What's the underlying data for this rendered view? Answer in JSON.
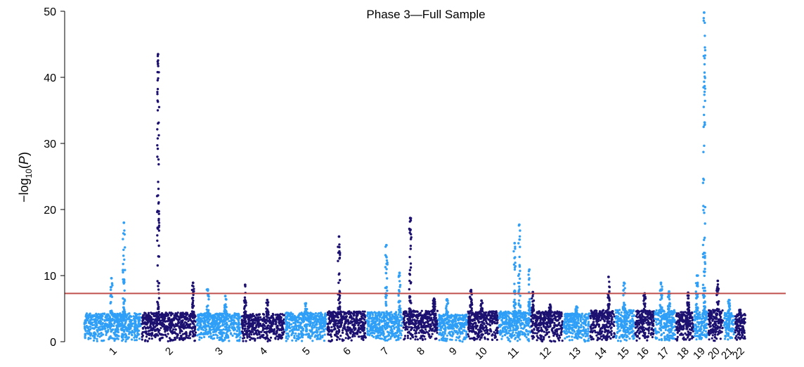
{
  "chart_data": {
    "type": "scatter",
    "subtype": "manhattan",
    "title": "Phase 3—Full Sample",
    "xlabel": "",
    "ylabel": {
      "prefix": "−log",
      "subscript": "10",
      "open": "(",
      "italic": "P",
      "close": ")"
    },
    "ylim": [
      0,
      50
    ],
    "yticks": [
      0,
      10,
      20,
      30,
      40,
      50
    ],
    "grid": false,
    "legend": "none",
    "significance_threshold": 7.3,
    "colors": {
      "light": "#2f9ff7",
      "dark": "#1c1070",
      "threshold": "#c0504d"
    },
    "chromosomes": [
      {
        "name": "1",
        "color": "light",
        "baseline": 4.3,
        "peaks": [
          {
            "pos": 0.7,
            "y": 18.0
          },
          {
            "pos": 0.48,
            "y": 9.6
          }
        ]
      },
      {
        "name": "2",
        "color": "dark",
        "baseline": 4.4,
        "peaks": [
          {
            "pos": 0.3,
            "y": 43.5
          },
          {
            "pos": 0.95,
            "y": 8.9
          }
        ]
      },
      {
        "name": "3",
        "color": "light",
        "baseline": 4.3,
        "peaks": [
          {
            "pos": 0.25,
            "y": 7.9
          },
          {
            "pos": 0.65,
            "y": 6.9
          }
        ]
      },
      {
        "name": "4",
        "color": "dark",
        "baseline": 4.2,
        "peaks": [
          {
            "pos": 0.08,
            "y": 8.6
          },
          {
            "pos": 0.6,
            "y": 6.3
          }
        ]
      },
      {
        "name": "5",
        "color": "light",
        "baseline": 4.4,
        "peaks": [
          {
            "pos": 0.5,
            "y": 5.8
          }
        ]
      },
      {
        "name": "6",
        "color": "dark",
        "baseline": 4.6,
        "peaks": [
          {
            "pos": 0.3,
            "y": 15.9
          }
        ]
      },
      {
        "name": "7",
        "color": "light",
        "baseline": 4.5,
        "peaks": [
          {
            "pos": 0.55,
            "y": 14.6
          },
          {
            "pos": 0.92,
            "y": 10.4
          }
        ]
      },
      {
        "name": "8",
        "color": "dark",
        "baseline": 4.7,
        "peaks": [
          {
            "pos": 0.2,
            "y": 18.7
          },
          {
            "pos": 0.9,
            "y": 6.5
          }
        ]
      },
      {
        "name": "9",
        "color": "light",
        "baseline": 4.1,
        "peaks": [
          {
            "pos": 0.3,
            "y": 6.4
          }
        ]
      },
      {
        "name": "10",
        "color": "dark",
        "baseline": 4.6,
        "peaks": [
          {
            "pos": 0.1,
            "y": 7.8
          },
          {
            "pos": 0.45,
            "y": 6.2
          }
        ]
      },
      {
        "name": "11",
        "color": "light",
        "baseline": 4.6,
        "peaks": [
          {
            "pos": 0.5,
            "y": 14.9
          },
          {
            "pos": 0.65,
            "y": 17.7
          },
          {
            "pos": 0.97,
            "y": 10.9
          }
        ]
      },
      {
        "name": "12",
        "color": "dark",
        "baseline": 4.6,
        "peaks": [
          {
            "pos": 0.05,
            "y": 7.5
          },
          {
            "pos": 0.6,
            "y": 5.6
          }
        ]
      },
      {
        "name": "13",
        "color": "light",
        "baseline": 4.3,
        "peaks": [
          {
            "pos": 0.5,
            "y": 5.3
          }
        ]
      },
      {
        "name": "14",
        "color": "dark",
        "baseline": 4.8,
        "peaks": [
          {
            "pos": 0.75,
            "y": 9.8
          }
        ]
      },
      {
        "name": "15",
        "color": "light",
        "baseline": 4.8,
        "peaks": [
          {
            "pos": 0.45,
            "y": 8.9
          }
        ]
      },
      {
        "name": "16",
        "color": "dark",
        "baseline": 4.7,
        "peaks": [
          {
            "pos": 0.5,
            "y": 7.3
          }
        ]
      },
      {
        "name": "17",
        "color": "light",
        "baseline": 4.8,
        "peaks": [
          {
            "pos": 0.3,
            "y": 8.9
          },
          {
            "pos": 0.7,
            "y": 7.6
          }
        ]
      },
      {
        "name": "18",
        "color": "dark",
        "baseline": 4.5,
        "peaks": [
          {
            "pos": 0.7,
            "y": 7.4
          }
        ]
      },
      {
        "name": "19",
        "color": "light",
        "baseline": 4.6,
        "peaks": [
          {
            "pos": 0.2,
            "y": 10.0
          },
          {
            "pos": 0.75,
            "y": 49.8
          }
        ]
      },
      {
        "name": "20",
        "color": "dark",
        "baseline": 4.8,
        "peaks": [
          {
            "pos": 0.65,
            "y": 9.2
          }
        ]
      },
      {
        "name": "21",
        "color": "light",
        "baseline": 4.4,
        "peaks": [
          {
            "pos": 0.5,
            "y": 6.3
          }
        ]
      },
      {
        "name": "22",
        "color": "dark",
        "baseline": 4.2,
        "peaks": [
          {
            "pos": 0.5,
            "y": 4.8
          }
        ]
      }
    ]
  }
}
